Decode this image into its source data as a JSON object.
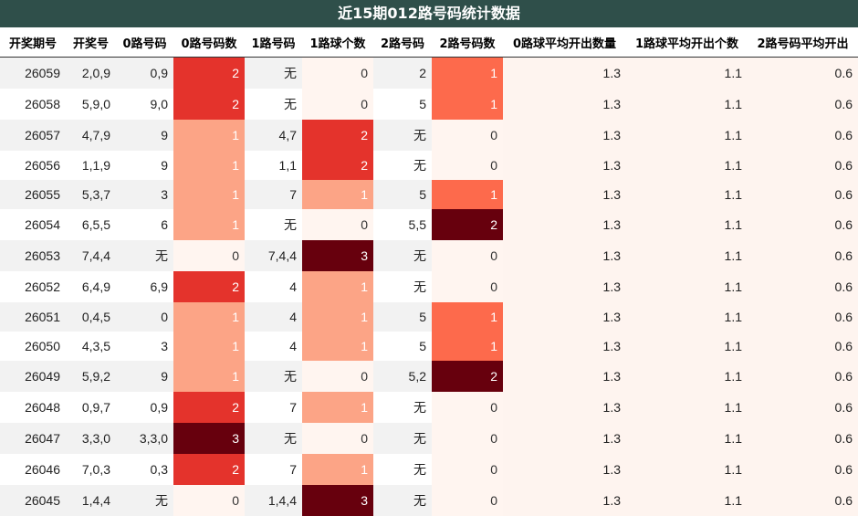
{
  "title": "近15期012路号码统计数据",
  "columns": [
    "开奖期号",
    "开奖号",
    "0路号码",
    "0路号码数",
    "1路号码",
    "1路球个数",
    "2路号码",
    "2路号码数",
    "0路球平均开出数量",
    "1路球平均开出个数",
    "2路号码平均开出"
  ],
  "rows": [
    [
      "26059",
      "2,0,9",
      "0,9",
      "2",
      "无",
      "0",
      "2",
      "1",
      "1.3",
      "1.1",
      "0.6"
    ],
    [
      "26058",
      "5,9,0",
      "9,0",
      "2",
      "无",
      "0",
      "5",
      "1",
      "1.3",
      "1.1",
      "0.6"
    ],
    [
      "26057",
      "4,7,9",
      "9",
      "1",
      "4,7",
      "2",
      "无",
      "0",
      "1.3",
      "1.1",
      "0.6"
    ],
    [
      "26056",
      "1,1,9",
      "9",
      "1",
      "1,1",
      "2",
      "无",
      "0",
      "1.3",
      "1.1",
      "0.6"
    ],
    [
      "26055",
      "5,3,7",
      "3",
      "1",
      "7",
      "1",
      "5",
      "1",
      "1.3",
      "1.1",
      "0.6"
    ],
    [
      "26054",
      "6,5,5",
      "6",
      "1",
      "无",
      "0",
      "5,5",
      "2",
      "1.3",
      "1.1",
      "0.6"
    ],
    [
      "26053",
      "7,4,4",
      "无",
      "0",
      "7,4,4",
      "3",
      "无",
      "0",
      "1.3",
      "1.1",
      "0.6"
    ],
    [
      "26052",
      "6,4,9",
      "6,9",
      "2",
      "4",
      "1",
      "无",
      "0",
      "1.3",
      "1.1",
      "0.6"
    ],
    [
      "26051",
      "0,4,5",
      "0",
      "1",
      "4",
      "1",
      "5",
      "1",
      "1.3",
      "1.1",
      "0.6"
    ],
    [
      "26050",
      "4,3,5",
      "3",
      "1",
      "4",
      "1",
      "5",
      "1",
      "1.3",
      "1.1",
      "0.6"
    ],
    [
      "26049",
      "5,9,2",
      "9",
      "1",
      "无",
      "0",
      "5,2",
      "2",
      "1.3",
      "1.1",
      "0.6"
    ],
    [
      "26048",
      "0,9,7",
      "0,9",
      "2",
      "7",
      "1",
      "无",
      "0",
      "1.3",
      "1.1",
      "0.6"
    ],
    [
      "26047",
      "3,3,0",
      "3,3,0",
      "3",
      "无",
      "0",
      "无",
      "0",
      "1.3",
      "1.1",
      "0.6"
    ],
    [
      "26046",
      "7,0,3",
      "0,3",
      "2",
      "7",
      "1",
      "无",
      "0",
      "1.3",
      "1.1",
      "0.6"
    ],
    [
      "26045",
      "1,4,4",
      "无",
      "0",
      "1,4,4",
      "3",
      "无",
      "0",
      "1.3",
      "1.1",
      "0.6"
    ]
  ],
  "colors": {
    "title_bg": "#2f4f4a",
    "zebra": "#f2f2f2",
    "avg_bg": "#fef4ef",
    "heat0": [
      "#fff5f0",
      "#fca486",
      "#e4332c",
      "#67000d"
    ],
    "heat1": [
      "#fff5f0",
      "#fca486",
      "#e4332c",
      "#67000d"
    ],
    "heat2": [
      "#fff5f0",
      "#fd6a4c",
      "#67000d"
    ]
  }
}
